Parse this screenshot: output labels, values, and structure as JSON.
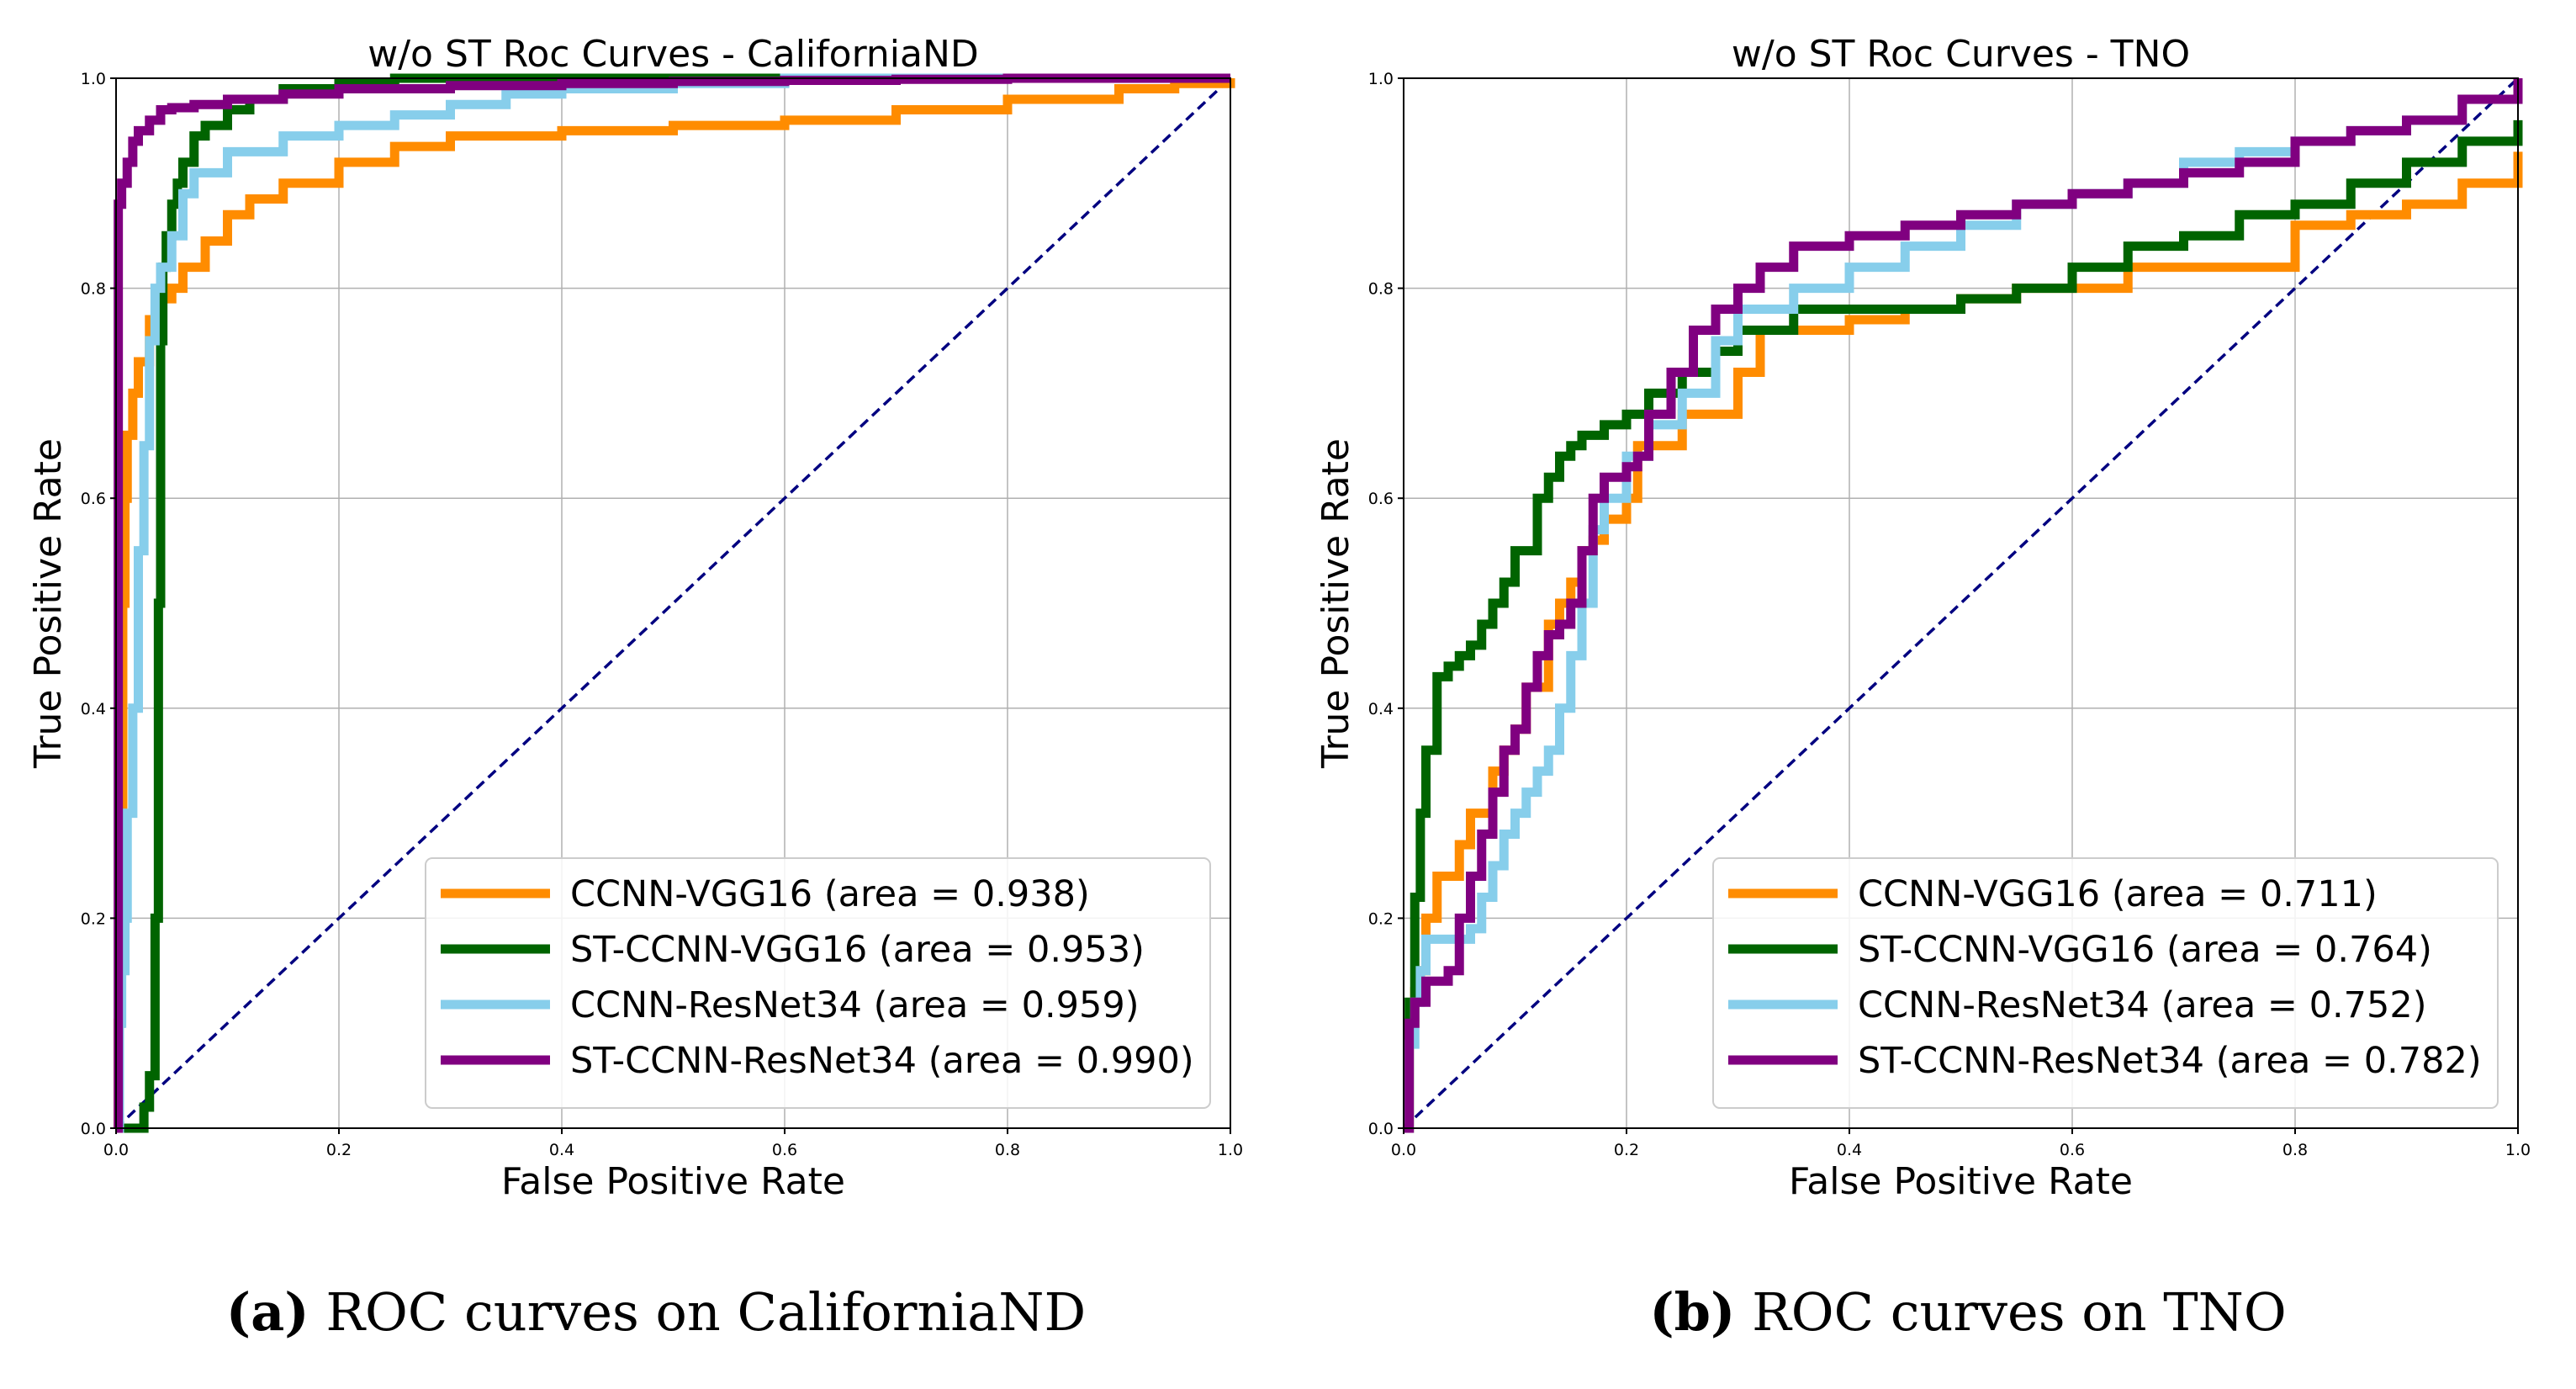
{
  "figure": {
    "subfigures": [
      {
        "tag": "(a)",
        "caption": "ROC curves on CaliforniaND"
      },
      {
        "tag": "(b)",
        "caption": "ROC curves on TNO"
      }
    ]
  },
  "chart_data": [
    {
      "type": "line",
      "title": "w/o ST Roc Curves - CaliforniaND",
      "xlabel": "False Positive Rate",
      "ylabel": "True Positive Rate",
      "xlim": [
        0,
        1
      ],
      "ylim": [
        0,
        1
      ],
      "xticks": [
        "0.0",
        "0.2",
        "0.4",
        "0.6",
        "0.8",
        "1.0"
      ],
      "yticks": [
        "0.0",
        "0.2",
        "0.4",
        "0.6",
        "0.8",
        "1.0"
      ],
      "grid": true,
      "legend_position": "lower-right",
      "diagonal": {
        "x": [
          0,
          1
        ],
        "y": [
          0,
          1
        ],
        "color": "#000080",
        "style": "dashed"
      },
      "series": [
        {
          "name": "CCNN-VGG16 (area = 0.938)",
          "color": "#FF8C00",
          "x": [
            0,
            0.002,
            0.004,
            0.006,
            0.008,
            0.01,
            0.015,
            0.02,
            0.03,
            0.04,
            0.05,
            0.06,
            0.08,
            0.1,
            0.12,
            0.15,
            0.2,
            0.25,
            0.3,
            0.4,
            0.5,
            0.6,
            0.7,
            0.8,
            0.9,
            0.95,
            1.0
          ],
          "y": [
            0,
            0.1,
            0.3,
            0.5,
            0.6,
            0.66,
            0.7,
            0.73,
            0.77,
            0.79,
            0.8,
            0.82,
            0.845,
            0.87,
            0.885,
            0.9,
            0.92,
            0.935,
            0.945,
            0.95,
            0.955,
            0.96,
            0.97,
            0.98,
            0.99,
            0.995,
            1.0
          ]
        },
        {
          "name": "ST-CCNN-VGG16 (area = 0.953)",
          "color": "#006400",
          "x": [
            0,
            0.02,
            0.025,
            0.03,
            0.035,
            0.038,
            0.04,
            0.042,
            0.045,
            0.05,
            0.055,
            0.06,
            0.07,
            0.08,
            0.1,
            0.12,
            0.15,
            0.2,
            0.25,
            0.3,
            0.4,
            0.5,
            0.6,
            0.7,
            0.8,
            0.9,
            1.0
          ],
          "y": [
            0,
            0,
            0.02,
            0.05,
            0.2,
            0.5,
            0.75,
            0.82,
            0.85,
            0.88,
            0.9,
            0.92,
            0.945,
            0.955,
            0.97,
            0.98,
            0.99,
            0.995,
            1.0,
            1.0,
            1.0,
            1.0,
            1.0,
            1.0,
            1.0,
            1.0,
            1.0
          ]
        },
        {
          "name": "CCNN-ResNet34 (area = 0.959)",
          "color": "#87CEEB",
          "x": [
            0,
            0.003,
            0.005,
            0.008,
            0.01,
            0.015,
            0.02,
            0.025,
            0.03,
            0.035,
            0.04,
            0.05,
            0.06,
            0.07,
            0.1,
            0.15,
            0.2,
            0.25,
            0.3,
            0.35,
            0.4,
            0.5,
            0.6,
            0.7,
            0.8,
            1.0
          ],
          "y": [
            0,
            0.1,
            0.15,
            0.2,
            0.3,
            0.4,
            0.55,
            0.65,
            0.75,
            0.8,
            0.82,
            0.85,
            0.89,
            0.91,
            0.93,
            0.945,
            0.955,
            0.965,
            0.975,
            0.985,
            0.99,
            0.995,
            1.0,
            1.0,
            1.0,
            1.0
          ]
        },
        {
          "name": "ST-CCNN-ResNet34 (area = 0.990)",
          "color": "#800080",
          "x": [
            0,
            0.002,
            0.005,
            0.01,
            0.015,
            0.02,
            0.03,
            0.04,
            0.05,
            0.07,
            0.1,
            0.15,
            0.2,
            0.3,
            0.4,
            0.5,
            0.6,
            0.7,
            0.8,
            0.9,
            1.0
          ],
          "y": [
            0,
            0.88,
            0.9,
            0.92,
            0.94,
            0.95,
            0.96,
            0.97,
            0.972,
            0.975,
            0.98,
            0.985,
            0.99,
            0.993,
            0.995,
            0.997,
            0.998,
            0.999,
            1.0,
            1.0,
            1.0
          ]
        }
      ]
    },
    {
      "type": "line",
      "title": "w/o ST Roc Curves - TNO",
      "xlabel": "False Positive Rate",
      "ylabel": "True Positive Rate",
      "xlim": [
        0,
        1
      ],
      "ylim": [
        0,
        1
      ],
      "xticks": [
        "0.0",
        "0.2",
        "0.4",
        "0.6",
        "0.8",
        "1.0"
      ],
      "yticks": [
        "0.0",
        "0.2",
        "0.4",
        "0.6",
        "0.8",
        "1.0"
      ],
      "grid": true,
      "legend_position": "lower-right",
      "diagonal": {
        "x": [
          0,
          1
        ],
        "y": [
          0,
          1
        ],
        "color": "#000080",
        "style": "dashed"
      },
      "series": [
        {
          "name": "CCNN-VGG16 (area = 0.711)",
          "color": "#FF8C00",
          "x": [
            0,
            0.005,
            0.01,
            0.015,
            0.02,
            0.03,
            0.05,
            0.06,
            0.08,
            0.09,
            0.1,
            0.11,
            0.13,
            0.14,
            0.15,
            0.16,
            0.17,
            0.18,
            0.2,
            0.21,
            0.25,
            0.3,
            0.32,
            0.35,
            0.4,
            0.45,
            0.5,
            0.55,
            0.6,
            0.65,
            0.7,
            0.75,
            0.8,
            0.85,
            0.9,
            0.95,
            1.0
          ],
          "y": [
            0,
            0.1,
            0.13,
            0.15,
            0.2,
            0.24,
            0.27,
            0.3,
            0.34,
            0.36,
            0.38,
            0.42,
            0.48,
            0.5,
            0.52,
            0.55,
            0.56,
            0.58,
            0.6,
            0.65,
            0.68,
            0.72,
            0.76,
            0.76,
            0.77,
            0.78,
            0.79,
            0.8,
            0.8,
            0.82,
            0.82,
            0.82,
            0.86,
            0.87,
            0.88,
            0.9,
            0.93
          ]
        },
        {
          "name": "ST-CCNN-VGG16 (area = 0.764)",
          "color": "#006400",
          "x": [
            0,
            0.005,
            0.01,
            0.015,
            0.02,
            0.03,
            0.04,
            0.05,
            0.06,
            0.07,
            0.08,
            0.09,
            0.1,
            0.12,
            0.13,
            0.14,
            0.15,
            0.16,
            0.18,
            0.2,
            0.22,
            0.25,
            0.28,
            0.3,
            0.35,
            0.4,
            0.45,
            0.5,
            0.55,
            0.6,
            0.65,
            0.7,
            0.75,
            0.8,
            0.85,
            0.9,
            0.95,
            1.0
          ],
          "y": [
            0,
            0.12,
            0.22,
            0.3,
            0.36,
            0.43,
            0.44,
            0.45,
            0.46,
            0.48,
            0.5,
            0.52,
            0.55,
            0.6,
            0.62,
            0.64,
            0.65,
            0.66,
            0.67,
            0.68,
            0.7,
            0.72,
            0.74,
            0.76,
            0.78,
            0.78,
            0.78,
            0.79,
            0.8,
            0.82,
            0.84,
            0.85,
            0.87,
            0.88,
            0.9,
            0.92,
            0.94,
            0.96
          ]
        },
        {
          "name": "CCNN-ResNet34 (area = 0.752)",
          "color": "#87CEEB",
          "x": [
            0,
            0.005,
            0.01,
            0.015,
            0.02,
            0.04,
            0.06,
            0.07,
            0.08,
            0.09,
            0.1,
            0.11,
            0.12,
            0.13,
            0.14,
            0.15,
            0.16,
            0.17,
            0.18,
            0.2,
            0.22,
            0.25,
            0.28,
            0.3,
            0.35,
            0.4,
            0.45,
            0.5,
            0.55,
            0.6,
            0.65,
            0.7,
            0.75,
            0.8,
            0.85,
            0.9,
            0.95,
            1.0
          ],
          "y": [
            0,
            0.08,
            0.12,
            0.15,
            0.18,
            0.18,
            0.19,
            0.22,
            0.25,
            0.28,
            0.3,
            0.32,
            0.34,
            0.36,
            0.4,
            0.45,
            0.5,
            0.57,
            0.6,
            0.64,
            0.67,
            0.7,
            0.75,
            0.78,
            0.8,
            0.82,
            0.84,
            0.86,
            0.88,
            0.89,
            0.9,
            0.92,
            0.93,
            0.94,
            0.95,
            0.96,
            0.98,
            1.0
          ]
        },
        {
          "name": "ST-CCNN-ResNet34 (area = 0.782)",
          "color": "#800080",
          "x": [
            0,
            0.005,
            0.01,
            0.02,
            0.04,
            0.05,
            0.06,
            0.07,
            0.08,
            0.09,
            0.1,
            0.11,
            0.12,
            0.13,
            0.14,
            0.15,
            0.16,
            0.17,
            0.18,
            0.2,
            0.21,
            0.22,
            0.24,
            0.26,
            0.28,
            0.3,
            0.32,
            0.35,
            0.4,
            0.45,
            0.5,
            0.55,
            0.6,
            0.65,
            0.7,
            0.75,
            0.8,
            0.85,
            0.9,
            0.95,
            1.0
          ],
          "y": [
            0,
            0.1,
            0.12,
            0.14,
            0.15,
            0.2,
            0.24,
            0.28,
            0.32,
            0.36,
            0.38,
            0.42,
            0.45,
            0.47,
            0.48,
            0.5,
            0.55,
            0.6,
            0.62,
            0.63,
            0.64,
            0.68,
            0.72,
            0.76,
            0.78,
            0.8,
            0.82,
            0.84,
            0.85,
            0.86,
            0.87,
            0.88,
            0.89,
            0.9,
            0.91,
            0.92,
            0.94,
            0.95,
            0.96,
            0.98,
            1.0
          ]
        }
      ]
    }
  ]
}
